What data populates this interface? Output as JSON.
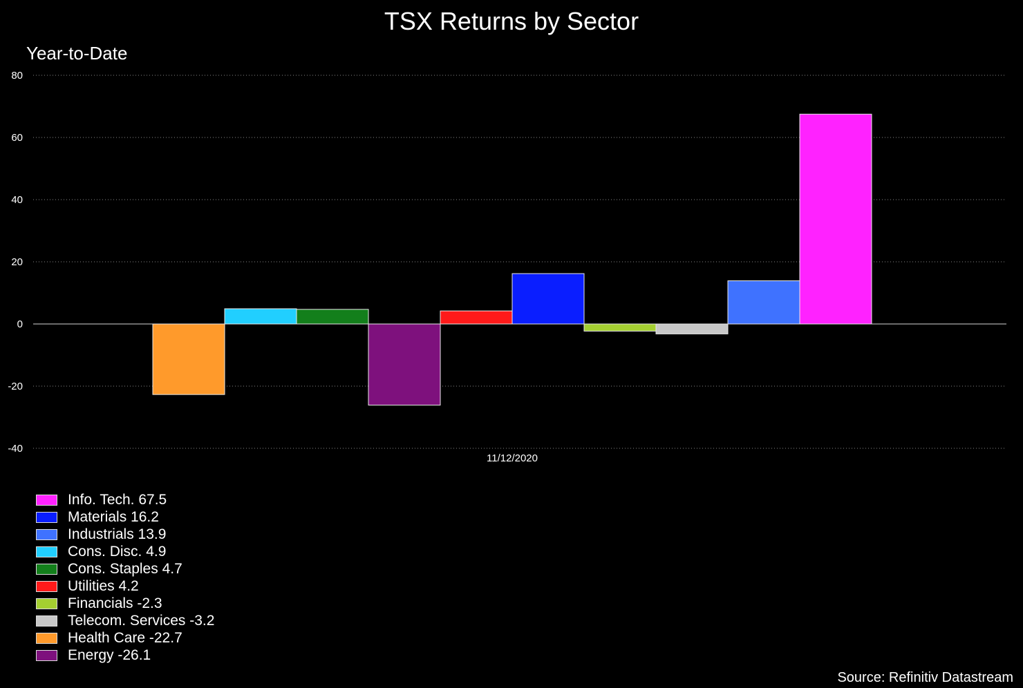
{
  "chart_data": {
    "type": "bar",
    "title": "TSX Returns by Sector",
    "subtitle": "Year-to-Date",
    "categories": [
      "11/12/2020"
    ],
    "ylim": [
      -40,
      80
    ],
    "yticks": [
      -40,
      -20,
      0,
      20,
      40,
      60,
      80
    ],
    "grid": true,
    "legend_position": "bottom-left",
    "series": [
      {
        "name": "Health Care",
        "legend": "Health Care -22.7",
        "value": -22.7,
        "color": "#FF9A2B"
      },
      {
        "name": "Cons. Disc.",
        "legend": "Cons. Disc. 4.9",
        "value": 4.9,
        "color": "#21CFFF"
      },
      {
        "name": "Cons. Staples",
        "legend": "Cons. Staples 4.7",
        "value": 4.7,
        "color": "#137F1B"
      },
      {
        "name": "Energy",
        "legend": "Energy -26.1",
        "value": -26.1,
        "color": "#7E117D"
      },
      {
        "name": "Utilities",
        "legend": "Utilities 4.2",
        "value": 4.2,
        "color": "#FF1A1A"
      },
      {
        "name": "Materials",
        "legend": "Materials 16.2",
        "value": 16.2,
        "color": "#0A1EFF"
      },
      {
        "name": "Financials",
        "legend": "Financials -2.3",
        "value": -2.3,
        "color": "#A4CF31"
      },
      {
        "name": "Telecom. Services",
        "legend": "Telecom. Services -3.2",
        "value": -3.2,
        "color": "#C8C8C8"
      },
      {
        "name": "Industrials",
        "legend": "Industrials 13.9",
        "value": 13.9,
        "color": "#3F72FF"
      },
      {
        "name": "Info. Tech.",
        "legend": "Info. Tech. 67.5",
        "value": 67.5,
        "color": "#FF22FF"
      }
    ],
    "legend_order": [
      "Info. Tech.",
      "Materials",
      "Industrials",
      "Cons. Disc.",
      "Cons. Staples",
      "Utilities",
      "Financials",
      "Telecom. Services",
      "Health Care",
      "Energy"
    ]
  },
  "source": "Source: Refinitiv Datastream"
}
